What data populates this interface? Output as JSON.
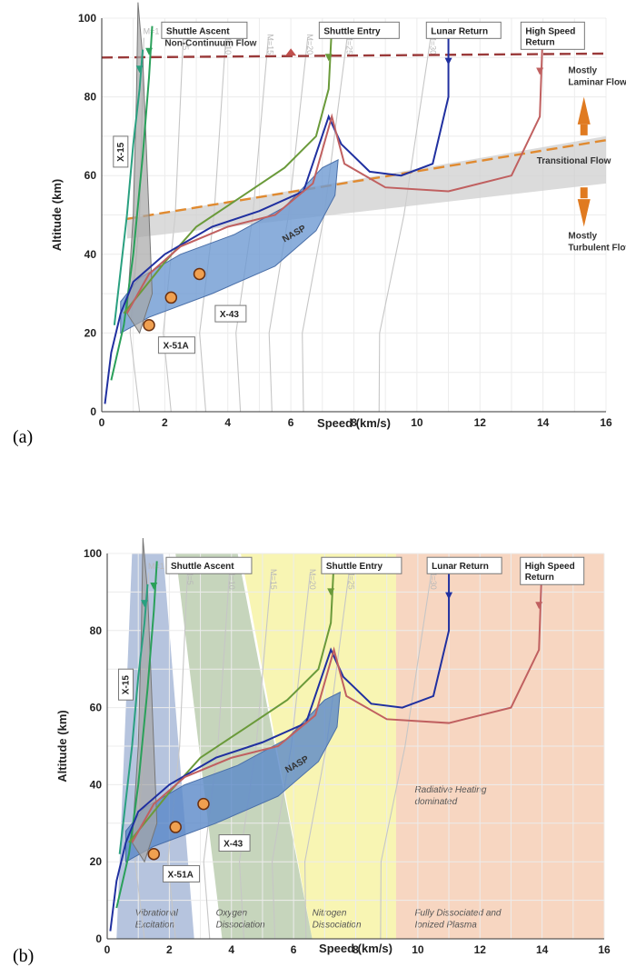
{
  "chart_data": [
    {
      "panel": "(a)",
      "type": "line",
      "xlabel": "Speed (km/s)",
      "ylabel": "Altitude (km)",
      "xlim": [
        0,
        16
      ],
      "ylim": [
        0,
        100
      ],
      "xticks": [
        "0",
        "2",
        "4",
        "6",
        "8",
        "10",
        "12",
        "14",
        "16"
      ],
      "yticks": [
        "0",
        "20",
        "40",
        "60",
        "80",
        "100"
      ],
      "grid": true,
      "mach_labels": [
        "M=1",
        "M=5",
        "M=10",
        "M=15",
        "M=20",
        "M=25",
        "M=30"
      ],
      "series": [
        {
          "name": "Shuttle Ascent",
          "color": "#2aa05a",
          "x": [
            0.3,
            0.7,
            1.0,
            1.3,
            1.5,
            1.6
          ],
          "y": [
            8,
            22,
            40,
            65,
            85,
            98
          ]
        },
        {
          "name": "Shuttle Entry",
          "color": "#6a9a3a",
          "x": [
            0.7,
            1.2,
            2.0,
            3.0,
            4.5,
            5.8,
            6.8,
            7.2,
            7.3
          ],
          "y": [
            25,
            30,
            38,
            47,
            55,
            62,
            70,
            82,
            98
          ]
        },
        {
          "name": "Lunar Return",
          "color": "#2030a0",
          "x": [
            0.1,
            0.3,
            0.6,
            1.0,
            2.0,
            3.5,
            5.0,
            6.4,
            7.2,
            7.6,
            8.5,
            9.5,
            10.5,
            11.0,
            11.0
          ],
          "y": [
            2,
            15,
            25,
            33,
            40,
            47,
            51,
            56,
            75,
            68,
            61,
            60,
            63,
            80,
            98
          ]
        },
        {
          "name": "High Speed Return",
          "color": "#c06060",
          "x": [
            0.8,
            1.5,
            2.5,
            4.0,
            5.5,
            6.7,
            7.3,
            7.7,
            9.0,
            11.0,
            13.0,
            13.9,
            14.0
          ],
          "y": [
            25,
            35,
            42,
            47,
            50,
            58,
            75,
            63,
            57,
            56,
            60,
            75,
            98
          ]
        },
        {
          "name": "X-15",
          "color": "#2aa080",
          "x": [
            0.4,
            0.8,
            1.0,
            1.2,
            1.3
          ],
          "y": [
            22,
            50,
            68,
            82,
            92
          ]
        }
      ],
      "points": [
        {
          "name": "X-51A",
          "x": 1.5,
          "y": 22
        },
        {
          "name": "X-43",
          "x": 2.2,
          "y": 29
        },
        {
          "name": "X-43",
          "x": 3.1,
          "y": 35
        }
      ],
      "region_labels": [
        "NASP"
      ],
      "boxes": [
        "Shuttle Ascent",
        "Shuttle Entry",
        "Lunar Return",
        "High Speed\nReturn",
        "X-15",
        "X-43",
        "X-51A"
      ],
      "annotations": [
        "Non-Continuum Flow",
        "Mostly\nLaminar Flow",
        "Transitional Flow",
        "Mostly\nTurbulent Flow"
      ],
      "boundaries": [
        {
          "label": "Non-Continuum Flow",
          "x": [
            0,
            16
          ],
          "y": [
            90,
            91
          ]
        },
        {
          "label": "Transitional Flow",
          "x": [
            0.8,
            16
          ],
          "y": [
            49,
            69
          ]
        }
      ]
    },
    {
      "panel": "(b)",
      "type": "line",
      "xlabel": "Speed (km/s)",
      "ylabel": "Altitude (km)",
      "xlim": [
        0,
        16
      ],
      "ylim": [
        0,
        100
      ],
      "xticks": [
        "0",
        "2",
        "4",
        "6",
        "8",
        "10",
        "12",
        "14",
        "16"
      ],
      "yticks": [
        "0",
        "20",
        "40",
        "60",
        "80",
        "100"
      ],
      "grid": true,
      "mach_labels": [
        "M=1",
        "M=5",
        "M=10",
        "M=15",
        "M=20",
        "M=25",
        "M=30"
      ],
      "series": "same as (a)",
      "regions": [
        {
          "label": "Vibrational\nExcitation",
          "color": "#8fa5cc"
        },
        {
          "label": "Oxygen\nDissociation",
          "color": "#a8bf98"
        },
        {
          "label": "Nitrogen\nDissociation",
          "color": "#f5f08a"
        },
        {
          "label": "Fully Dissociated and\nIonized Plasma",
          "color": "#f2c0a0"
        }
      ],
      "annotations": [
        "Radiative Heating\ndominated"
      ],
      "region_labels": [
        "NASP"
      ],
      "boxes": [
        "Shuttle Ascent",
        "Shuttle Entry",
        "Lunar Return",
        "High Speed\nReturn",
        "X-15",
        "X-43",
        "X-51A"
      ]
    }
  ]
}
